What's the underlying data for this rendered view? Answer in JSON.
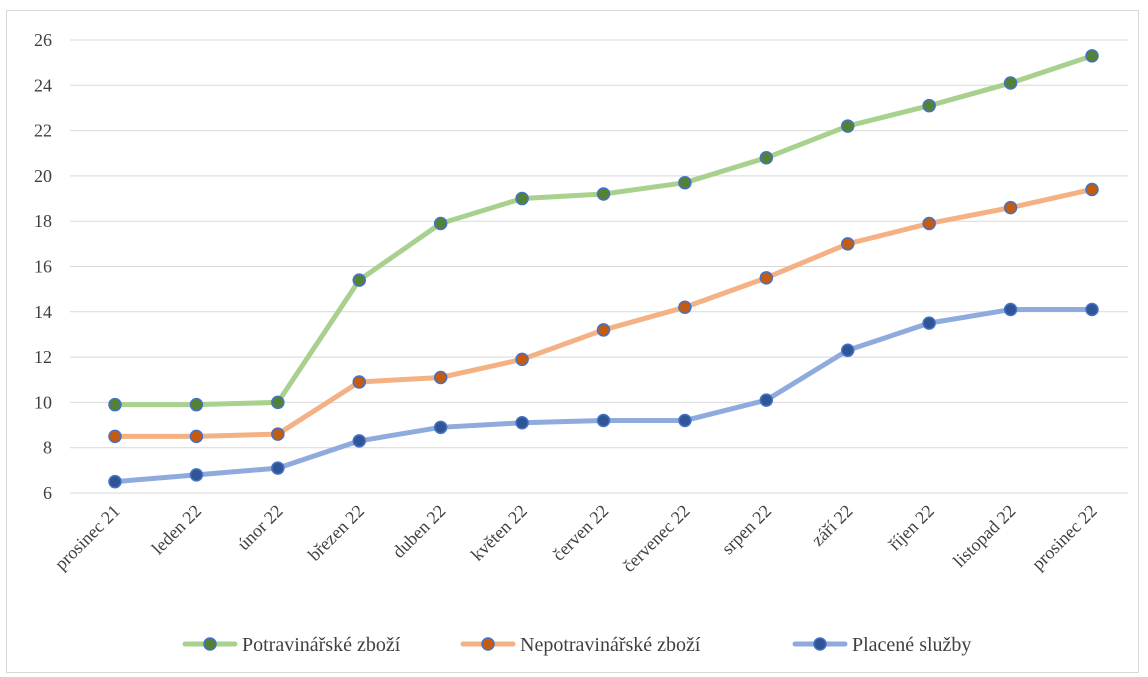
{
  "chart_data": {
    "type": "line",
    "title": "",
    "xlabel": "",
    "ylabel": "",
    "categories": [
      "prosinec 21",
      "leden 22",
      "únor 22",
      "březen 22",
      "duben 22",
      "květen 22",
      "červen 22",
      "červenec 22",
      "srpen 22",
      "září 22",
      "říjen 22",
      "listopad 22",
      "prosinec 22"
    ],
    "ylim": [
      6,
      26
    ],
    "yticks": [
      6,
      8,
      10,
      12,
      14,
      16,
      18,
      20,
      22,
      24,
      26
    ],
    "grid": "horizontal",
    "legend_position": "bottom",
    "series": [
      {
        "name": "Potravinářské zboží",
        "line_color": "#a9d18e",
        "marker_color": "#548235",
        "values": [
          9.9,
          9.9,
          10.0,
          15.4,
          17.9,
          19.0,
          19.2,
          19.7,
          20.8,
          22.2,
          23.1,
          24.1,
          25.3
        ]
      },
      {
        "name": "Nepotravinářské zboží",
        "line_color": "#f4b183",
        "marker_color": "#c55a11",
        "values": [
          8.5,
          8.5,
          8.6,
          10.9,
          11.1,
          11.9,
          13.2,
          14.2,
          15.5,
          17.0,
          17.9,
          18.6,
          19.4
        ]
      },
      {
        "name": "Placené služby",
        "line_color": "#8faadc",
        "marker_color": "#2f5597",
        "values": [
          6.5,
          6.8,
          7.1,
          8.3,
          8.9,
          9.1,
          9.2,
          9.2,
          10.1,
          12.3,
          13.5,
          14.1,
          14.1
        ]
      }
    ]
  }
}
